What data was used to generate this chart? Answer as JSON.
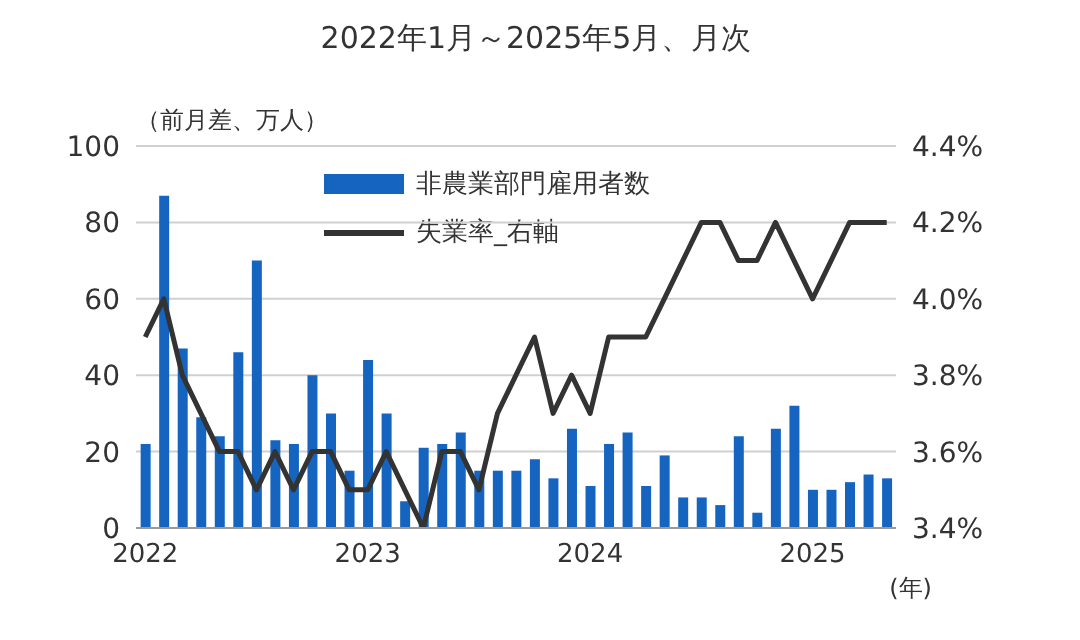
{
  "chart_data": {
    "type": "bar",
    "title": "2022年1月～2025年5月、月次",
    "ylabel": "（前月差、万人）",
    "annotations": [
      "(年)"
    ],
    "categories": [
      "2022",
      null,
      null,
      null,
      null,
      null,
      null,
      null,
      null,
      null,
      null,
      null,
      "2023",
      null,
      null,
      null,
      null,
      null,
      null,
      null,
      null,
      null,
      null,
      null,
      "2024",
      null,
      null,
      null,
      null,
      null,
      null,
      null,
      null,
      null,
      null,
      null,
      "2025",
      null,
      null,
      null,
      null
    ],
    "series": [
      {
        "name": "非農業部門雇用者数",
        "color": "#1565c0",
        "values": [
          22,
          87,
          47,
          29,
          24,
          46,
          70,
          23,
          22,
          40,
          30,
          15,
          44,
          30,
          7,
          21,
          22,
          25,
          15,
          15,
          15,
          18,
          13,
          26,
          11,
          22,
          25,
          11,
          19,
          8,
          8,
          6,
          24,
          4,
          26,
          32,
          10,
          10,
          12,
          14,
          13
        ]
      },
      {
        "name": "失業率_右軸",
        "type": "line",
        "axis": "y2",
        "color": "#333333",
        "values": [
          3.9,
          4.0,
          3.8,
          3.7,
          3.6,
          3.6,
          3.5,
          3.6,
          3.5,
          3.6,
          3.6,
          3.5,
          3.5,
          3.6,
          3.5,
          3.4,
          3.6,
          3.6,
          3.5,
          3.7,
          3.8,
          3.9,
          3.7,
          3.8,
          3.7,
          3.9,
          3.9,
          3.9,
          4.0,
          4.1,
          4.2,
          4.2,
          4.1,
          4.1,
          4.2,
          4.1,
          4.0,
          4.1,
          4.2,
          4.2,
          4.2
        ]
      }
    ],
    "ylim": [
      0,
      100
    ],
    "yticks": [
      0,
      20,
      40,
      60,
      80,
      100
    ],
    "y2lim": [
      3.4,
      4.4
    ],
    "y2ticks": [
      {
        "value": 3.4,
        "label": "3.4%"
      },
      {
        "value": 3.6,
        "label": "3.6%"
      },
      {
        "value": 3.8,
        "label": "3.8%"
      },
      {
        "value": 4.0,
        "label": "4.0%"
      },
      {
        "value": 4.2,
        "label": "4.2%"
      },
      {
        "value": 4.4,
        "label": "4.4%"
      }
    ],
    "grid": "y",
    "legend": "top",
    "marker": "none"
  }
}
